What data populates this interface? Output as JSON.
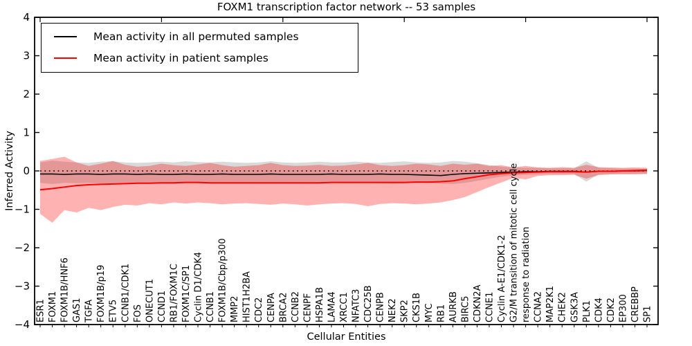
{
  "title": "FOXM1 transcription factor network -- 53 samples",
  "legend": {
    "position": "upper left",
    "items": [
      {
        "label": "Mean activity in all permuted samples",
        "color": "#000000"
      },
      {
        "label": "Mean activity in patient samples",
        "color": "#ff0000"
      }
    ]
  },
  "axes": {
    "xlabel": "Cellular Entities",
    "ylabel": "Inferred Activity",
    "ytick_labels": [
      "4",
      "3",
      "2",
      "1",
      "0",
      "−1",
      "−2",
      "−3",
      "−4"
    ]
  },
  "chart_data": {
    "type": "line",
    "title": "FOXM1 transcription factor network -- 53 samples",
    "xlabel": "Cellular Entities",
    "ylabel": "Inferred Activity",
    "ylim": [
      -4,
      4
    ],
    "yticks": [
      4,
      3,
      2,
      1,
      0,
      -1,
      -2,
      -3,
      -4
    ],
    "grid": false,
    "legend_position": "upper left",
    "zero_line": {
      "style": "dotted",
      "color": "#000000",
      "y": 0
    },
    "colors": {
      "permuted": "#000000",
      "patient": "#ff0000",
      "permuted_band": "rgba(128,128,128,0.30)",
      "patient_band": "rgba(255,0,0,0.30)"
    },
    "categories": [
      "ESR1",
      "FOXM1",
      "FOXM1B/HNF6",
      "GAS1",
      "TGFA",
      "FOXM1B/p19",
      "ETV5",
      "CCNB1/CDK1",
      "FOS",
      "ONECUT1",
      "CCND1",
      "RB1/FOXM1C",
      "FOXM1C/SP1",
      "Cyclin D1/CDK4",
      "CCNB1",
      "FOXM1B/Cbp/p300",
      "MMP2",
      "HIST1H2BA",
      "CDC2",
      "CENPA",
      "BRCA2",
      "CCNB2",
      "CENPF",
      "HSPA1B",
      "LAMA4",
      "XRCC1",
      "NFATC3",
      "CDC25B",
      "CENPB",
      "NEK2",
      "SKP2",
      "CKS1B",
      "MYC",
      "RB1",
      "AURKB",
      "BIRC5",
      "CDKN2A",
      "CCNE1",
      "Cyclin A-E1/CDK1-2",
      "G2/M transition of mitotic cell cycle",
      "response to radiation",
      "CCNA2",
      "MAP2K1",
      "CHEK2",
      "GSK3A",
      "PLK1",
      "CDK4",
      "CDK2",
      "EP300",
      "CREBBP",
      "SP1"
    ],
    "series": [
      {
        "name": "Mean activity in all permuted samples",
        "color": "#000000",
        "width": 1.6,
        "values": [
          -0.08,
          -0.08,
          -0.09,
          -0.08,
          -0.08,
          -0.09,
          -0.08,
          -0.08,
          -0.09,
          -0.08,
          -0.09,
          -0.09,
          -0.08,
          -0.09,
          -0.09,
          -0.08,
          -0.09,
          -0.09,
          -0.09,
          -0.08,
          -0.09,
          -0.09,
          -0.09,
          -0.09,
          -0.08,
          -0.09,
          -0.09,
          -0.09,
          -0.08,
          -0.09,
          -0.09,
          -0.1,
          -0.11,
          -0.12,
          -0.09,
          -0.07,
          -0.06,
          -0.05,
          -0.04,
          -0.03,
          -0.02,
          -0.02,
          -0.01,
          -0.01,
          -0.01,
          -0.03,
          -0.01,
          -0.01,
          0.0,
          0.0,
          0.01
        ]
      },
      {
        "name": "Mean activity in patient samples",
        "color": "#ff0000",
        "width": 2,
        "values": [
          -0.49,
          -0.46,
          -0.42,
          -0.38,
          -0.36,
          -0.35,
          -0.34,
          -0.33,
          -0.32,
          -0.32,
          -0.31,
          -0.31,
          -0.3,
          -0.3,
          -0.31,
          -0.31,
          -0.31,
          -0.31,
          -0.31,
          -0.31,
          -0.31,
          -0.31,
          -0.31,
          -0.31,
          -0.3,
          -0.3,
          -0.3,
          -0.3,
          -0.3,
          -0.3,
          -0.3,
          -0.29,
          -0.29,
          -0.28,
          -0.26,
          -0.2,
          -0.15,
          -0.1,
          -0.07,
          -0.05,
          -0.04,
          -0.03,
          -0.02,
          -0.02,
          -0.02,
          -0.03,
          -0.01,
          -0.01,
          0.0,
          0.01,
          0.02
        ]
      }
    ],
    "bands": [
      {
        "name": "permuted-range",
        "color": "rgba(128,128,128,0.30)",
        "upper": [
          0.22,
          0.27,
          0.24,
          0.22,
          0.21,
          0.24,
          0.25,
          0.22,
          0.21,
          0.22,
          0.24,
          0.22,
          0.25,
          0.23,
          0.22,
          0.24,
          0.22,
          0.21,
          0.22,
          0.25,
          0.22,
          0.21,
          0.22,
          0.24,
          0.22,
          0.22,
          0.24,
          0.22,
          0.21,
          0.23,
          0.25,
          0.22,
          0.21,
          0.22,
          0.26,
          0.24,
          0.2,
          0.15,
          0.11,
          0.09,
          0.08,
          0.08,
          0.07,
          0.07,
          0.07,
          0.25,
          0.08,
          0.07,
          0.06,
          0.06,
          0.06
        ],
        "lower": [
          -0.31,
          -0.34,
          -0.31,
          -0.32,
          -0.31,
          -0.33,
          -0.32,
          -0.31,
          -0.32,
          -0.31,
          -0.32,
          -0.33,
          -0.31,
          -0.32,
          -0.33,
          -0.32,
          -0.31,
          -0.32,
          -0.33,
          -0.32,
          -0.31,
          -0.32,
          -0.33,
          -0.32,
          -0.31,
          -0.32,
          -0.32,
          -0.31,
          -0.32,
          -0.33,
          -0.32,
          -0.31,
          -0.32,
          -0.33,
          -0.34,
          -0.31,
          -0.26,
          -0.2,
          -0.15,
          -0.12,
          -0.1,
          -0.09,
          -0.08,
          -0.08,
          -0.08,
          -0.28,
          -0.09,
          -0.08,
          -0.07,
          -0.07,
          -0.07
        ]
      },
      {
        "name": "patient-range",
        "color": "rgba(255,0,0,0.30)",
        "upper": [
          0.26,
          0.31,
          0.37,
          0.22,
          0.13,
          0.19,
          0.26,
          0.16,
          0.11,
          0.13,
          0.19,
          0.15,
          0.13,
          0.17,
          0.21,
          0.15,
          0.11,
          0.13,
          0.15,
          0.21,
          0.15,
          0.13,
          0.14,
          0.16,
          0.13,
          0.14,
          0.17,
          0.21,
          0.15,
          0.13,
          0.15,
          0.19,
          0.17,
          0.13,
          0.19,
          0.16,
          0.19,
          0.13,
          0.15,
          0.09,
          0.13,
          0.09,
          0.08,
          0.1,
          0.08,
          0.16,
          0.1,
          0.09,
          0.08,
          0.09,
          0.08
        ],
        "lower": [
          -1.12,
          -1.35,
          -1.02,
          -1.08,
          -0.96,
          -1.02,
          -0.94,
          -0.88,
          -0.9,
          -0.84,
          -0.87,
          -0.82,
          -0.85,
          -0.82,
          -0.84,
          -0.87,
          -0.85,
          -0.84,
          -0.86,
          -0.88,
          -0.85,
          -0.87,
          -0.9,
          -0.87,
          -0.85,
          -0.84,
          -0.86,
          -0.92,
          -0.86,
          -0.84,
          -0.85,
          -0.87,
          -0.85,
          -0.82,
          -0.76,
          -0.68,
          -0.55,
          -0.42,
          -0.3,
          -0.18,
          -0.22,
          -0.13,
          -0.11,
          -0.11,
          -0.1,
          -0.2,
          -0.11,
          -0.09,
          -0.09,
          -0.09,
          -0.08
        ]
      }
    ],
    "top_ticks_every": 10
  }
}
